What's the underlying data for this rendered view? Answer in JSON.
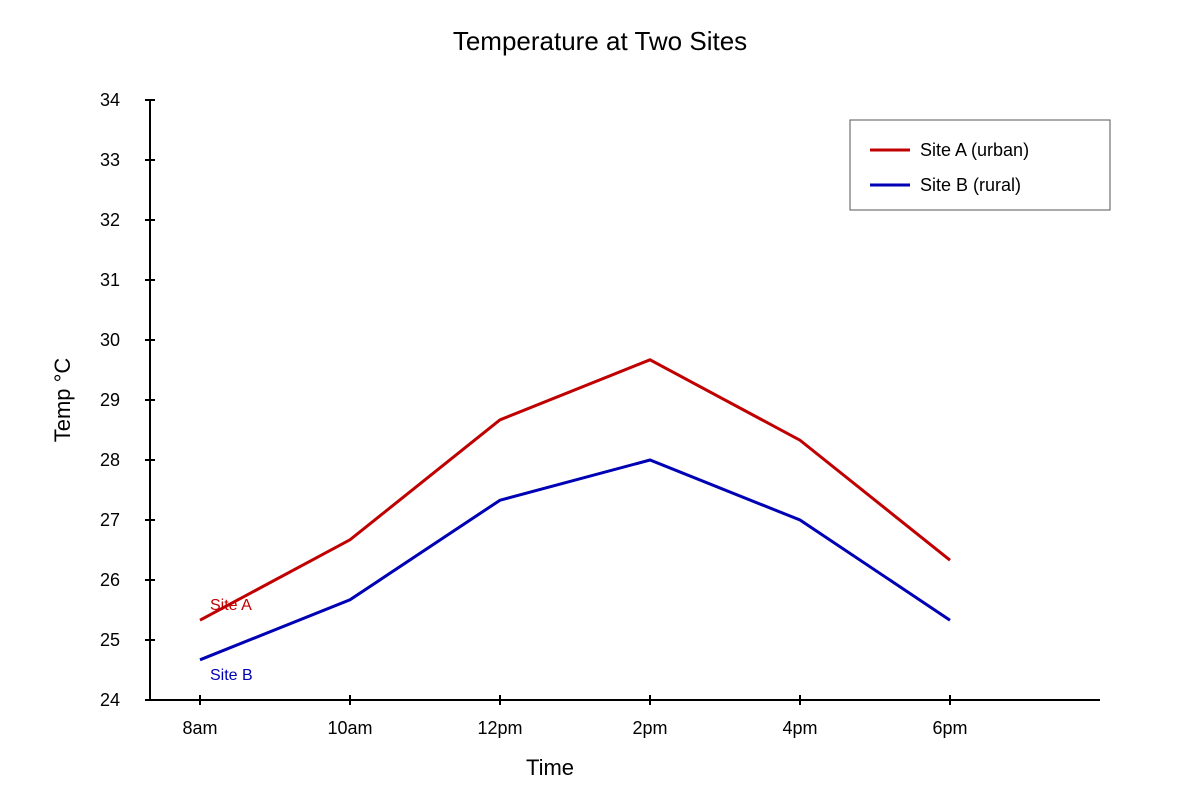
{
  "chart_data": {
    "type": "line",
    "title": "Temperature at Two Sites",
    "xlabel": "Time",
    "ylabel": "Temp °C",
    "categories": [
      "8am",
      "10am",
      "12pm",
      "2pm",
      "4pm",
      "6pm"
    ],
    "yticks": [
      "24",
      "25",
      "26",
      "27",
      "28",
      "29",
      "30",
      "31",
      "32",
      "33",
      "34"
    ],
    "ylim": [
      24,
      34
    ],
    "grid": false,
    "legend_position": "top-right",
    "series": [
      {
        "name": "Site A (urban)",
        "label": "Site A",
        "color": "#c00000",
        "values": [
          25.33,
          26.67,
          28.67,
          29.67,
          28.33,
          26.33
        ]
      },
      {
        "name": "Site B (rural)",
        "label": "Site B",
        "color": "#0000b4",
        "values": [
          24.67,
          25.67,
          27.33,
          28.0,
          27.0,
          25.33
        ]
      }
    ]
  }
}
